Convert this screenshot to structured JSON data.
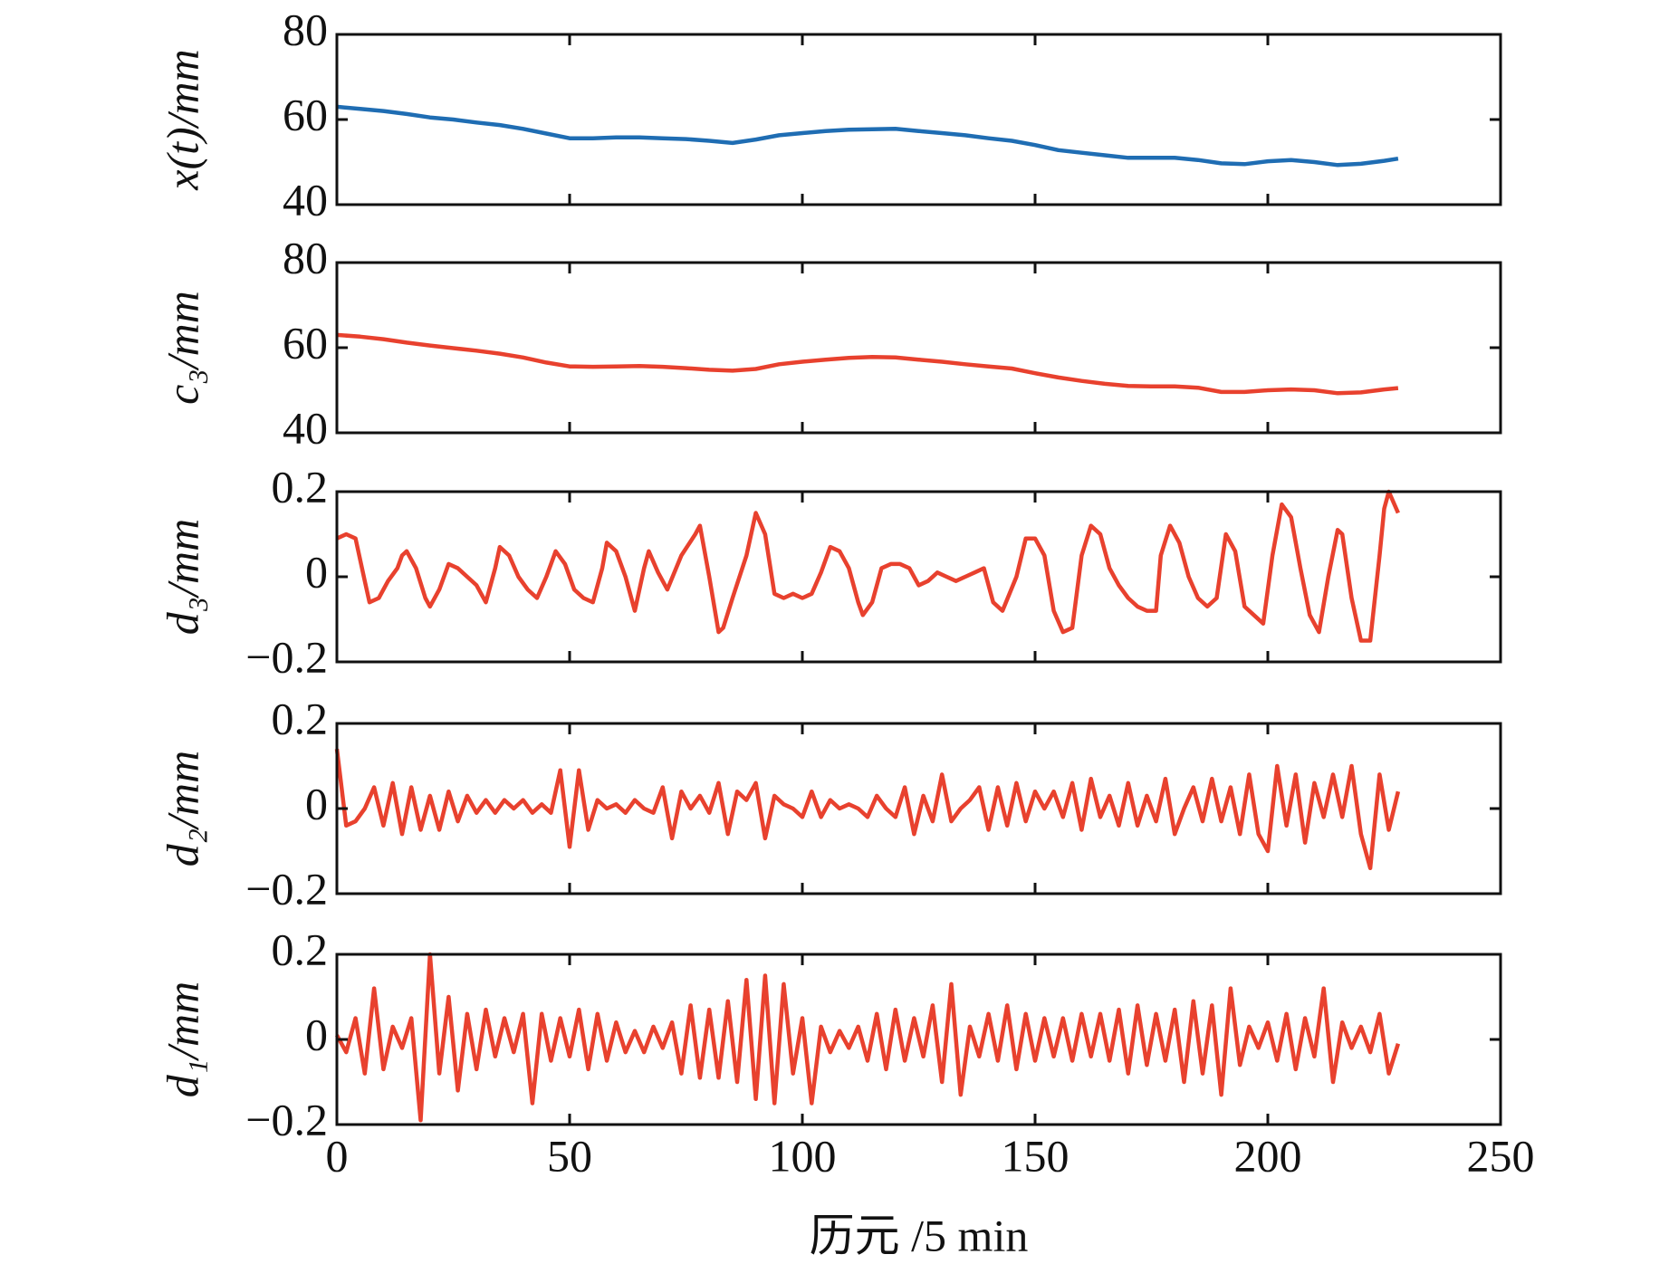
{
  "chart_data": [
    {
      "type": "line",
      "ylabel": "x(t)/mm",
      "ylim": [
        40,
        80
      ],
      "yticks": [
        40,
        60,
        80
      ],
      "xlim": [
        0,
        250
      ],
      "xticks": [
        0,
        50,
        100,
        150,
        200,
        250
      ],
      "x": [
        0,
        5,
        10,
        15,
        20,
        25,
        30,
        35,
        40,
        45,
        50,
        55,
        60,
        65,
        70,
        75,
        80,
        85,
        90,
        95,
        100,
        105,
        110,
        115,
        120,
        125,
        130,
        135,
        140,
        145,
        150,
        155,
        160,
        165,
        170,
        175,
        180,
        185,
        190,
        195,
        200,
        205,
        210,
        215,
        220,
        225,
        228
      ],
      "series": [
        {
          "color": "#1f6db3",
          "values": [
            63,
            62.5,
            62,
            61.3,
            60.5,
            60,
            59.3,
            58.7,
            57.8,
            56.7,
            55.6,
            55.6,
            55.8,
            55.8,
            55.6,
            55.4,
            55,
            54.5,
            55.3,
            56.3,
            56.8,
            57.3,
            57.6,
            57.7,
            57.8,
            57.3,
            56.8,
            56.3,
            55.6,
            55,
            54,
            52.8,
            52.2,
            51.6,
            51,
            51,
            51,
            50.5,
            49.7,
            49.5,
            50.2,
            50.5,
            50,
            49.3,
            49.6,
            50.3,
            50.8
          ]
        }
      ]
    },
    {
      "type": "line",
      "ylabel": "c₃/mm",
      "ylim": [
        40,
        80
      ],
      "yticks": [
        40,
        60,
        80
      ],
      "xlim": [
        0,
        250
      ],
      "xticks": [
        0,
        50,
        100,
        150,
        200,
        250
      ],
      "x": [
        0,
        5,
        10,
        15,
        20,
        25,
        30,
        35,
        40,
        45,
        50,
        55,
        60,
        65,
        70,
        75,
        80,
        85,
        90,
        95,
        100,
        105,
        110,
        115,
        120,
        125,
        130,
        135,
        140,
        145,
        150,
        155,
        160,
        165,
        170,
        175,
        180,
        185,
        190,
        195,
        200,
        205,
        210,
        215,
        220,
        225,
        228
      ],
      "series": [
        {
          "color": "#e8412e",
          "values": [
            63,
            62.6,
            62,
            61.2,
            60.5,
            59.9,
            59.3,
            58.6,
            57.7,
            56.5,
            55.6,
            55.5,
            55.6,
            55.7,
            55.5,
            55.2,
            54.8,
            54.6,
            55,
            56.1,
            56.7,
            57.2,
            57.6,
            57.8,
            57.7,
            57.2,
            56.7,
            56.1,
            55.6,
            55.1,
            54,
            53,
            52.2,
            51.5,
            51,
            50.9,
            50.9,
            50.6,
            49.6,
            49.6,
            50,
            50.2,
            50,
            49.3,
            49.5,
            50.2,
            50.5
          ]
        }
      ]
    },
    {
      "type": "line",
      "ylabel": "d₃/mm",
      "ylim": [
        -0.2,
        0.2
      ],
      "yticks": [
        {
          "value": -0.2,
          "label": "−0.2"
        },
        0,
        0.2
      ],
      "xlim": [
        0,
        250
      ],
      "xticks": [
        0,
        50,
        100,
        150,
        200,
        250
      ],
      "x": [
        0,
        2,
        4,
        6,
        7,
        9,
        11,
        13,
        14,
        15,
        17,
        19,
        20,
        22,
        24,
        26,
        28,
        30,
        32,
        34,
        35,
        37,
        39,
        41,
        43,
        45,
        47,
        49,
        51,
        53,
        55,
        57,
        58,
        60,
        62,
        64,
        66,
        67,
        69,
        71,
        74,
        77,
        78,
        80,
        82,
        83,
        85,
        88,
        90,
        92,
        94,
        96,
        98,
        100,
        102,
        104,
        106,
        108,
        110,
        112,
        113,
        115,
        117,
        119,
        121,
        123,
        125,
        127,
        129,
        131,
        133,
        135,
        137,
        139,
        141,
        143,
        146,
        148,
        150,
        152,
        154,
        156,
        158,
        160,
        162,
        164,
        166,
        168,
        170,
        172,
        174,
        176,
        177,
        179,
        181,
        183,
        185,
        187,
        189,
        191,
        193,
        195,
        197,
        199,
        201,
        203,
        205,
        207,
        209,
        211,
        213,
        215,
        216,
        218,
        220,
        222,
        224,
        225,
        226,
        228
      ],
      "series": [
        {
          "color": "#e8412e",
          "values": [
            0.09,
            0.1,
            0.09,
            -0.01,
            -0.06,
            -0.05,
            -0.01,
            0.02,
            0.05,
            0.06,
            0.02,
            -0.05,
            -0.07,
            -0.03,
            0.03,
            0.02,
            0,
            -0.02,
            -0.06,
            0.02,
            0.07,
            0.05,
            0,
            -0.03,
            -0.05,
            0,
            0.06,
            0.03,
            -0.03,
            -0.05,
            -0.06,
            0.02,
            0.08,
            0.06,
            0,
            -0.08,
            0.02,
            0.06,
            0.01,
            -0.03,
            0.05,
            0.1,
            0.12,
            0,
            -0.13,
            -0.12,
            -0.05,
            0.05,
            0.15,
            0.1,
            -0.04,
            -0.05,
            -0.04,
            -0.05,
            -0.04,
            0.01,
            0.07,
            0.06,
            0.02,
            -0.06,
            -0.09,
            -0.06,
            0.02,
            0.03,
            0.03,
            0.02,
            -0.02,
            -0.01,
            0.01,
            0,
            -0.01,
            0,
            0.01,
            0.02,
            -0.06,
            -0.08,
            0,
            0.09,
            0.09,
            0.05,
            -0.08,
            -0.13,
            -0.12,
            0.05,
            0.12,
            0.1,
            0.02,
            -0.02,
            -0.05,
            -0.07,
            -0.08,
            -0.08,
            0.05,
            0.12,
            0.08,
            0,
            -0.05,
            -0.07,
            -0.05,
            0.1,
            0.06,
            -0.07,
            -0.09,
            -0.11,
            0.05,
            0.17,
            0.14,
            0.02,
            -0.09,
            -0.13,
            0,
            0.11,
            0.1,
            -0.05,
            -0.15,
            -0.15,
            0.05,
            0.16,
            0.2,
            0.15
          ]
        }
      ]
    },
    {
      "type": "line",
      "ylabel": "d₂/mm",
      "ylim": [
        -0.2,
        0.2
      ],
      "yticks": [
        {
          "value": -0.2,
          "label": "−0.2"
        },
        0,
        0.2
      ],
      "xlim": [
        0,
        250
      ],
      "xticks": [
        0,
        50,
        100,
        150,
        200,
        250
      ],
      "x": [
        0,
        2,
        4,
        6,
        8,
        10,
        12,
        14,
        16,
        18,
        20,
        22,
        24,
        26,
        28,
        30,
        32,
        34,
        36,
        38,
        40,
        42,
        44,
        46,
        48,
        50,
        52,
        54,
        56,
        58,
        60,
        62,
        64,
        66,
        68,
        70,
        72,
        74,
        76,
        78,
        80,
        82,
        84,
        86,
        88,
        90,
        92,
        94,
        96,
        98,
        100,
        102,
        104,
        106,
        108,
        110,
        112,
        114,
        116,
        118,
        120,
        122,
        124,
        126,
        128,
        130,
        132,
        134,
        136,
        138,
        140,
        142,
        144,
        146,
        148,
        150,
        152,
        154,
        156,
        158,
        160,
        162,
        164,
        166,
        168,
        170,
        172,
        174,
        176,
        178,
        180,
        182,
        184,
        186,
        188,
        190,
        192,
        194,
        196,
        198,
        200,
        202,
        204,
        206,
        208,
        210,
        212,
        214,
        216,
        218,
        220,
        222,
        224,
        226,
        228
      ],
      "series": [
        {
          "color": "#e8412e",
          "values": [
            0.14,
            -0.04,
            -0.03,
            0,
            0.05,
            -0.04,
            0.06,
            -0.06,
            0.05,
            -0.05,
            0.03,
            -0.05,
            0.04,
            -0.03,
            0.03,
            -0.01,
            0.02,
            -0.01,
            0.02,
            0,
            0.02,
            -0.01,
            0.01,
            -0.01,
            0.09,
            -0.09,
            0.09,
            -0.05,
            0.02,
            0,
            0.01,
            -0.01,
            0.02,
            0,
            -0.01,
            0.05,
            -0.07,
            0.04,
            0,
            0.03,
            -0.01,
            0.06,
            -0.06,
            0.04,
            0.02,
            0.06,
            -0.07,
            0.03,
            0.01,
            0,
            -0.02,
            0.04,
            -0.02,
            0.02,
            0,
            0.01,
            0,
            -0.02,
            0.03,
            0,
            -0.02,
            0.05,
            -0.06,
            0.03,
            -0.03,
            0.08,
            -0.03,
            0,
            0.02,
            0.05,
            -0.05,
            0.05,
            -0.04,
            0.06,
            -0.03,
            0.04,
            0,
            0.04,
            -0.02,
            0.06,
            -0.05,
            0.07,
            -0.02,
            0.03,
            -0.04,
            0.06,
            -0.04,
            0.03,
            -0.03,
            0.07,
            -0.06,
            0,
            0.05,
            -0.03,
            0.07,
            -0.03,
            0.05,
            -0.06,
            0.08,
            -0.06,
            -0.1,
            0.1,
            -0.04,
            0.08,
            -0.08,
            0.06,
            -0.02,
            0.08,
            -0.02,
            0.1,
            -0.06,
            -0.14,
            0.08,
            -0.05,
            0.04
          ]
        }
      ]
    },
    {
      "type": "line",
      "ylabel": "d₁/mm",
      "xlabel": "历元 /5 min",
      "ylim": [
        -0.2,
        0.2
      ],
      "yticks": [
        {
          "value": -0.2,
          "label": "−0.2"
        },
        0,
        0.2
      ],
      "xlim": [
        0,
        250
      ],
      "xticks": [
        0,
        50,
        100,
        150,
        200,
        250
      ],
      "x": [
        0,
        2,
        4,
        6,
        8,
        10,
        12,
        14,
        16,
        18,
        20,
        22,
        24,
        26,
        28,
        30,
        32,
        34,
        36,
        38,
        40,
        42,
        44,
        46,
        48,
        50,
        52,
        54,
        56,
        58,
        60,
        62,
        64,
        66,
        68,
        70,
        72,
        74,
        76,
        78,
        80,
        82,
        84,
        86,
        88,
        90,
        92,
        94,
        96,
        98,
        100,
        102,
        104,
        106,
        108,
        110,
        112,
        114,
        116,
        118,
        120,
        122,
        124,
        126,
        128,
        130,
        132,
        134,
        136,
        138,
        140,
        142,
        144,
        146,
        148,
        150,
        152,
        154,
        156,
        158,
        160,
        162,
        164,
        166,
        168,
        170,
        172,
        174,
        176,
        178,
        180,
        182,
        184,
        186,
        188,
        190,
        192,
        194,
        196,
        198,
        200,
        202,
        204,
        206,
        208,
        210,
        212,
        214,
        216,
        218,
        220,
        222,
        224,
        226,
        228
      ],
      "series": [
        {
          "color": "#e8412e",
          "values": [
            0.01,
            -0.03,
            0.05,
            -0.08,
            0.12,
            -0.07,
            0.03,
            -0.02,
            0.05,
            -0.19,
            0.2,
            -0.08,
            0.1,
            -0.12,
            0.06,
            -0.07,
            0.07,
            -0.04,
            0.05,
            -0.03,
            0.06,
            -0.15,
            0.06,
            -0.05,
            0.05,
            -0.04,
            0.07,
            -0.07,
            0.06,
            -0.05,
            0.04,
            -0.03,
            0.02,
            -0.03,
            0.03,
            -0.02,
            0.04,
            -0.08,
            0.08,
            -0.09,
            0.07,
            -0.09,
            0.09,
            -0.1,
            0.14,
            -0.14,
            0.15,
            -0.15,
            0.13,
            -0.08,
            0.05,
            -0.15,
            0.03,
            -0.03,
            0.02,
            -0.02,
            0.03,
            -0.05,
            0.06,
            -0.07,
            0.07,
            -0.05,
            0.05,
            -0.04,
            0.08,
            -0.1,
            0.13,
            -0.13,
            0.03,
            -0.04,
            0.06,
            -0.05,
            0.08,
            -0.07,
            0.06,
            -0.05,
            0.05,
            -0.04,
            0.05,
            -0.05,
            0.06,
            -0.04,
            0.06,
            -0.05,
            0.07,
            -0.08,
            0.08,
            -0.06,
            0.06,
            -0.05,
            0.07,
            -0.1,
            0.09,
            -0.08,
            0.08,
            -0.13,
            0.12,
            -0.06,
            0.03,
            -0.02,
            0.04,
            -0.05,
            0.06,
            -0.07,
            0.05,
            -0.04,
            0.12,
            -0.1,
            0.04,
            -0.02,
            0.03,
            -0.03,
            0.06,
            -0.08,
            -0.01
          ]
        }
      ]
    }
  ]
}
